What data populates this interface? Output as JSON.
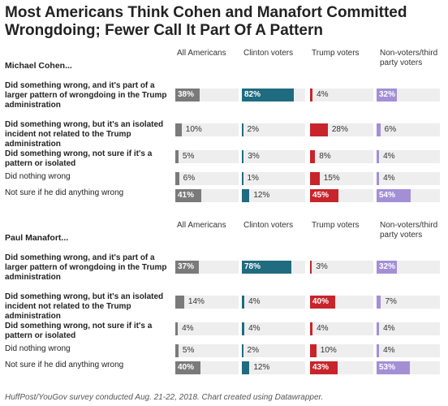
{
  "title": "Most Americans Think Cohen and Manafort Committed Wrongdoing; Fewer Call It Part Of A Pattern",
  "footer": "HuffPost/YouGov survey conducted Aug. 21-22, 2018. Chart created using Datawrapper.",
  "colors": {
    "All Americans": "#7a7a7a",
    "Clinton voters": "#1f6b7f",
    "Trump voters": "#c8242b",
    "Non-voters/third party voters": "#a38fd6",
    "track": "#eeeeee"
  },
  "chart_data": {
    "type": "bar",
    "columns": [
      "All Americans",
      "Clinton voters",
      "Trump voters",
      "Non-voters/third party voters"
    ],
    "xlim": [
      0,
      100
    ],
    "sections": [
      {
        "label": "Michael Cohen...",
        "rows": [
          {
            "label": "Did something wrong, and it's part of a larger pattern of wrongdoing in the Trump administration",
            "bold": true,
            "values": [
              38,
              82,
              4,
              32
            ]
          },
          {
            "label": "Did something wrong, but it's an isolated incident not related to the Trump administration",
            "bold": true,
            "values": [
              10,
              2,
              28,
              6
            ]
          },
          {
            "label": "Did something wrong, not sure if it's a pattern or isolated",
            "bold": true,
            "values": [
              5,
              3,
              8,
              4
            ]
          },
          {
            "label": "Did nothing wrong",
            "bold": false,
            "values": [
              6,
              1,
              15,
              4
            ]
          },
          {
            "label": "Not sure if he did anything wrong",
            "bold": false,
            "values": [
              41,
              12,
              45,
              54
            ]
          }
        ]
      },
      {
        "label": "Paul Manafort...",
        "rows": [
          {
            "label": "Did something wrong, and it's part of a larger pattern of wrongdoing in the Trump administration",
            "bold": true,
            "values": [
              37,
              78,
              3,
              32
            ]
          },
          {
            "label": "Did something wrong, but it's an isolated incident not related to the Trump administration",
            "bold": true,
            "values": [
              14,
              4,
              40,
              7
            ]
          },
          {
            "label": "Did something wrong, not sure if it's a pattern or isolated",
            "bold": true,
            "values": [
              4,
              4,
              4,
              4
            ]
          },
          {
            "label": "Did nothing wrong",
            "bold": false,
            "values": [
              5,
              2,
              10,
              4
            ]
          },
          {
            "label": "Not sure if he did anything wrong",
            "bold": false,
            "values": [
              40,
              12,
              43,
              53
            ]
          }
        ]
      }
    ]
  }
}
